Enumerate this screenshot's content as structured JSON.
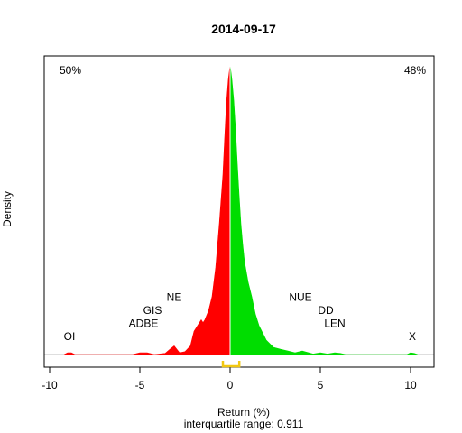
{
  "chart_data": {
    "type": "area",
    "title": "2014-09-17",
    "xlabel": "Return (%)",
    "ylabel": "Density",
    "subtitle": "interquartile range: 0.911",
    "xlim": [
      -10.3,
      11.3
    ],
    "ylim": [
      0,
      1.0
    ],
    "xticks": [
      -10,
      -5,
      0,
      5,
      10
    ],
    "grid": false,
    "split_at": 0,
    "colors": {
      "negative": "#ff0000",
      "positive": "#00dd00",
      "iqr": "#f2c811",
      "baseline": "#bebebe"
    },
    "left_percent": "50%",
    "right_percent": "48%",
    "left_percent_color": "#ff0000",
    "right_percent_color": "#009900",
    "iqr_bracket": {
      "from": -0.4,
      "to": 0.51
    },
    "density": {
      "x": [
        -9.2,
        -9.0,
        -8.8,
        -8.6,
        -5.4,
        -5.0,
        -4.6,
        -4.2,
        -3.6,
        -3.3,
        -3.1,
        -2.8,
        -2.5,
        -2.2,
        -2.0,
        -1.8,
        -1.6,
        -1.5,
        -1.4,
        -1.2,
        -1.0,
        -0.8,
        -0.6,
        -0.4,
        -0.3,
        -0.2,
        -0.1,
        0.0,
        0.1,
        0.2,
        0.3,
        0.4,
        0.5,
        0.6,
        0.7,
        0.8,
        1.0,
        1.2,
        1.4,
        1.6,
        2.0,
        2.4,
        2.8,
        3.2,
        3.6,
        4.0,
        4.6,
        5.0,
        5.4,
        5.8,
        6.1,
        6.4,
        9.8,
        10.0,
        10.2,
        10.4
      ],
      "y": [
        0,
        0.006,
        0.006,
        0,
        0,
        0.006,
        0.006,
        0,
        0.004,
        0.02,
        0.03,
        0.006,
        0.01,
        0.03,
        0.08,
        0.1,
        0.12,
        0.11,
        0.12,
        0.15,
        0.2,
        0.3,
        0.45,
        0.62,
        0.75,
        0.87,
        0.95,
        1.0,
        0.95,
        0.88,
        0.78,
        0.66,
        0.55,
        0.45,
        0.38,
        0.32,
        0.25,
        0.2,
        0.14,
        0.1,
        0.05,
        0.025,
        0.018,
        0.012,
        0.006,
        0.012,
        0.002,
        0.006,
        0.002,
        0.006,
        0.004,
        0,
        0,
        0.006,
        0.004,
        0
      ]
    },
    "annotations": [
      {
        "text": "OI",
        "x": -8.9,
        "level": 0.05
      },
      {
        "text": "ADBE",
        "x": -4.8,
        "level": 0.095
      },
      {
        "text": "GIS",
        "x": -4.3,
        "level": 0.14
      },
      {
        "text": "NE",
        "x": -3.1,
        "level": 0.185
      },
      {
        "text": "NUE",
        "x": 3.9,
        "level": 0.185
      },
      {
        "text": "DD",
        "x": 5.3,
        "level": 0.14
      },
      {
        "text": "LEN",
        "x": 5.8,
        "level": 0.095
      },
      {
        "text": "X",
        "x": 10.1,
        "level": 0.05
      }
    ]
  }
}
